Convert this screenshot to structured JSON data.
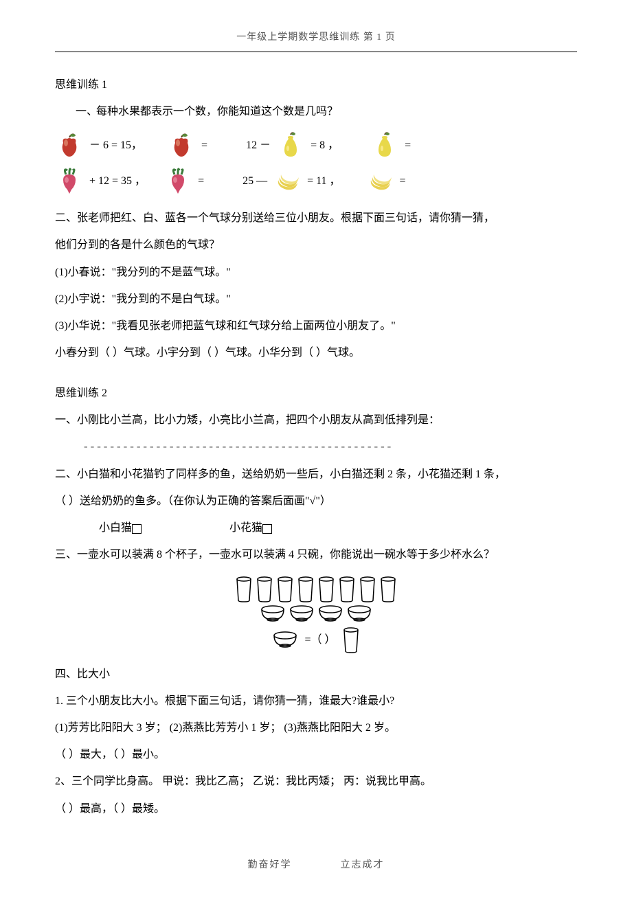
{
  "header": {
    "text": "一年级上学期数学思维训练    第 1 页"
  },
  "footer": {
    "left": "勤奋好学",
    "right": "立志成才"
  },
  "outer_label": "一、",
  "s1": {
    "title": "思维训练 1",
    "q1": {
      "prompt": "每种水果都表示一个数，你能知道这个数是几吗？",
      "row1_a": "－  6  =  15，",
      "row1_b": "=",
      "row1_c": "12  －",
      "row1_d": "=  8 ，",
      "row1_e": "=",
      "row2_a": "+  12  =  35 ，",
      "row2_b": "=",
      "row2_c": "25  —",
      "row2_d": "=  11 ，",
      "row2_e": "="
    },
    "q2": {
      "l1": "二、张老师把红、白、蓝各一个气球分别送给三位小朋友。根据下面三句话，请你猜一猜，",
      "l2": "他们分到的各是什么颜色的气球？",
      "l3": "(1)小春说：\"我分列的不是蓝气球。\"",
      "l4": "(2)小宇说：\"我分到的不是白气球。\"",
      "l5": "(3)小华说：\"我看见张老师把蓝气球和红气球分给上面两位小朋友了。\"",
      "l6": "小春分到（  ）气球。小宇分到（  ）气球。小华分到（  ）气球。"
    }
  },
  "s2": {
    "title": "思维训练 2",
    "q1": "一、小刚比小兰高，比小力矮，小亮比小兰高，把四个小朋友从高到低排列是：",
    "dashes": "-----------------------------------------------",
    "q2": {
      "l1": "二、小白猫和小花猫钓了同样多的鱼，送给奶奶一些后，小白猫还剩 2 条，小花猫还剩 1 条，",
      "l2": "（         ）送给奶奶的鱼多。（在你认为正确的答案后面画\"√\"）",
      "opt_a": "小白猫",
      "opt_b": "小花猫"
    },
    "q3": {
      "prompt": "三、一壶水可以装满 8 个杯子，一壶水可以装满 4 只碗，你能说出一碗水等于多少杯水么？",
      "cup_count": 8,
      "bowl_count": 4,
      "eq_text": "=（   ）"
    },
    "q4": {
      "title": "四、比大小",
      "p1": {
        "l1": "1. 三个小朋友比大小。根据下面三句话，请你猜一猜，谁最大?谁最小?",
        "l2": "(1)芳芳比阳阳大 3 岁；   (2)燕燕比芳芳小 1 岁；   (3)燕燕比阳阳大 2 岁。",
        "l3": "（   ）最大，（   ）最小。"
      },
      "p2": {
        "l1": "2、三个同学比身高。  甲说：我比乙高；   乙说：我比丙矮；   丙：说我比甲高。",
        "l2": "（   ）最高，（   ）最矮。"
      }
    }
  },
  "colors": {
    "apple_body": "#c23a2e",
    "apple_leaf": "#5a8a3a",
    "pear_body": "#e8d84a",
    "pear_leaf": "#5a8a3a",
    "radish_body": "#d14a6a",
    "radish_leaf": "#3a7a3a",
    "banana_body": "#e8d050"
  }
}
